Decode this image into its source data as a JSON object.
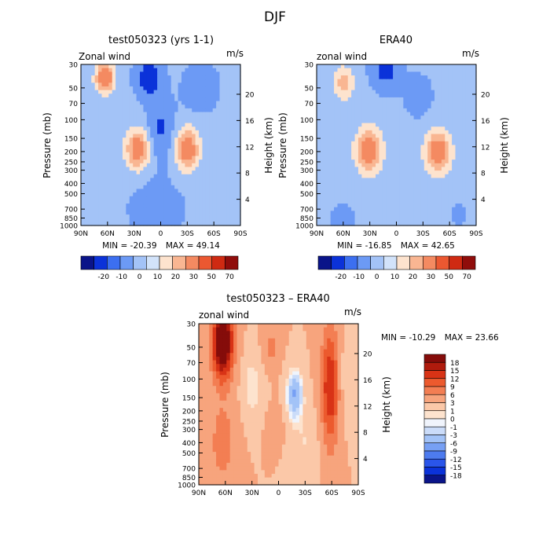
{
  "figure": {
    "title": "DJF",
    "stats_label_min": "MIN =",
    "stats_label_max": "MAX ="
  },
  "chart_data": [
    {
      "type": "heatmap",
      "title": "test050323 (yrs 1-1)",
      "left_label": "Zonal wind",
      "units": "m/s",
      "ylabel": "Pressure (mb)",
      "ylabel_right": "Height (km)",
      "xlim": [
        90,
        -90
      ],
      "x_ticks": [
        90,
        60,
        30,
        0,
        -30,
        -60,
        -90
      ],
      "x_tick_labels": [
        "90N",
        "60N",
        "30N",
        "0",
        "30S",
        "60S",
        "90S"
      ],
      "y_ticks": [
        30,
        50,
        70,
        100,
        150,
        200,
        250,
        300,
        400,
        500,
        700,
        850,
        1000
      ],
      "y_tick_labels": [
        "30",
        "50",
        "70",
        "100",
        "150",
        "200",
        "250",
        "300",
        "400",
        "500",
        "700",
        "850",
        "1000"
      ],
      "y_log_scale": true,
      "height_ticks": [
        20,
        16,
        12,
        8,
        4
      ],
      "min": "-20.39",
      "max": "49.14",
      "contour_levels": [
        -20,
        -10,
        0,
        10,
        20,
        30,
        50,
        70
      ],
      "colorbar_labels": [
        "-20",
        "-10",
        "0",
        "10",
        "20",
        "30",
        "50",
        "70"
      ],
      "features": [
        {
          "lat": 63,
          "p": 40,
          "value": 45,
          "slat": 7,
          "sp": 0.22
        },
        {
          "lat": 26,
          "p": 190,
          "value": 38,
          "slat": 9,
          "sp": 0.3
        },
        {
          "lat": -30,
          "p": 190,
          "value": 40,
          "slat": 9,
          "sp": 0.3
        },
        {
          "lat": 13,
          "p": 40,
          "value": -20,
          "slat": 11,
          "sp": 0.3
        },
        {
          "lat": 0,
          "p": 120,
          "value": -14,
          "slat": 11,
          "sp": 0.45
        },
        {
          "lat": -45,
          "p": 50,
          "value": -12,
          "slat": 14,
          "sp": 0.35
        },
        {
          "lat": 5,
          "p": 700,
          "value": -6,
          "slat": 28,
          "sp": 0.6
        }
      ]
    },
    {
      "type": "heatmap",
      "title": "ERA40",
      "left_label": "zonal wind",
      "units": "m/s",
      "ylabel": "Pressure (mb)",
      "ylabel_right": "Height (km)",
      "xlim": [
        90,
        -90
      ],
      "x_ticks": [
        90,
        60,
        30,
        0,
        -30,
        -60,
        -90
      ],
      "x_tick_labels": [
        "90N",
        "60N",
        "30N",
        "0",
        "30S",
        "60S",
        "90S"
      ],
      "y_ticks": [
        30,
        50,
        70,
        100,
        150,
        200,
        250,
        300,
        400,
        500,
        700,
        850,
        1000
      ],
      "y_tick_labels": [
        "30",
        "50",
        "70",
        "100",
        "150",
        "200",
        "250",
        "300",
        "400",
        "500",
        "700",
        "850",
        "1000"
      ],
      "y_log_scale": true,
      "height_ticks": [
        20,
        16,
        12,
        8,
        4
      ],
      "min": "-16.85",
      "max": "42.65",
      "contour_levels": [
        -20,
        -10,
        0,
        10,
        20,
        30,
        50,
        70
      ],
      "colorbar_labels": [
        "-20",
        "-10",
        "0",
        "10",
        "20",
        "30",
        "50",
        "70"
      ],
      "features": [
        {
          "lat": 60,
          "p": 45,
          "value": 22,
          "slat": 8,
          "sp": 0.25
        },
        {
          "lat": 31,
          "p": 195,
          "value": 40,
          "slat": 10,
          "sp": 0.32
        },
        {
          "lat": -47,
          "p": 200,
          "value": 38,
          "slat": 10,
          "sp": 0.32
        },
        {
          "lat": 12,
          "p": 35,
          "value": -16,
          "slat": 12,
          "sp": 0.3
        },
        {
          "lat": -25,
          "p": 60,
          "value": -8,
          "slat": 12,
          "sp": 0.35
        },
        {
          "lat": 60,
          "p": 850,
          "value": -5,
          "slat": 14,
          "sp": 0.3
        },
        {
          "lat": -70,
          "p": 800,
          "value": -4,
          "slat": 12,
          "sp": 0.3
        }
      ]
    },
    {
      "type": "heatmap",
      "title": "test050323 – ERA40",
      "left_label": "zonal wind",
      "units": "m/s",
      "ylabel": "Pressure (mb)",
      "ylabel_right": "Height (km)",
      "xlim": [
        90,
        -90
      ],
      "x_ticks": [
        90,
        60,
        30,
        0,
        -30,
        -60,
        -90
      ],
      "x_tick_labels": [
        "90N",
        "60N",
        "30N",
        "0",
        "30S",
        "60S",
        "90S"
      ],
      "y_ticks": [
        30,
        50,
        70,
        100,
        150,
        200,
        250,
        300,
        400,
        500,
        700,
        850,
        1000
      ],
      "y_tick_labels": [
        "30",
        "50",
        "70",
        "100",
        "150",
        "200",
        "250",
        "300",
        "400",
        "500",
        "700",
        "850",
        "1000"
      ],
      "y_log_scale": true,
      "height_ticks": [
        20,
        16,
        12,
        8,
        4
      ],
      "min": "-10.29",
      "max": "23.66",
      "contour_levels": [
        -18,
        -15,
        -12,
        -9,
        -6,
        -3,
        -1,
        0,
        1,
        3,
        6,
        9,
        12,
        15,
        18
      ],
      "colorbar_labels": [
        "18",
        "15",
        "12",
        "9",
        "6",
        "3",
        "1",
        "0",
        "-1",
        "-3",
        "-6",
        "-9",
        "-12",
        "-15",
        "-18"
      ],
      "features": [
        {
          "lat": 63,
          "p": 45,
          "value": 22,
          "slat": 8,
          "sp": 0.55
        },
        {
          "lat": 63,
          "p": 400,
          "value": 5,
          "slat": 10,
          "sp": 0.6
        },
        {
          "lat": -58,
          "p": 120,
          "value": 12,
          "slat": 7,
          "sp": 0.9
        },
        {
          "lat": 8,
          "p": 50,
          "value": 4,
          "slat": 6,
          "sp": 0.3
        },
        {
          "lat": 4,
          "p": 300,
          "value": 2,
          "slat": 6,
          "sp": 0.3
        },
        {
          "lat": -18,
          "p": 140,
          "value": -9,
          "slat": 6,
          "sp": 0.35
        },
        {
          "lat": 30,
          "p": 120,
          "value": -3,
          "slat": 8,
          "sp": 0.5
        },
        {
          "lat": -30,
          "p": 400,
          "value": -2,
          "slat": 12,
          "sp": 0.6
        },
        {
          "lat": -78,
          "p": 100,
          "value": -2,
          "slat": 8,
          "sp": 0.6
        }
      ]
    }
  ]
}
